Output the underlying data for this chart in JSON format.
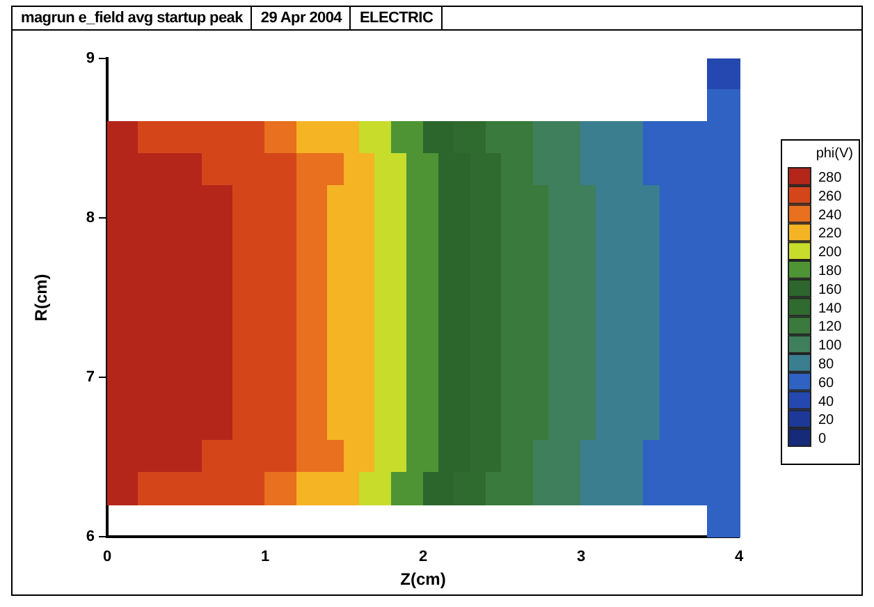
{
  "chart_data": {
    "type": "heatmap",
    "title": "magrun e_field avg startup peak",
    "subtitle": "29 Apr 2004",
    "annotations": [
      "ELECTRIC"
    ],
    "xlabel": "Z(cm)",
    "ylabel": "R(cm)",
    "clabel": "phi(V)",
    "xlim": [
      0,
      4
    ],
    "ylim": [
      6,
      9
    ],
    "xticks": [
      0,
      1,
      2,
      3,
      4
    ],
    "yticks": [
      6,
      7,
      8,
      9
    ],
    "clim": [
      0,
      300
    ],
    "cticks": [
      0,
      20,
      40,
      60,
      80,
      100,
      120,
      140,
      160,
      180,
      200,
      220,
      240,
      260,
      280
    ],
    "colors": [
      "#152a78",
      "#1d3896",
      "#2448b0",
      "#2f62c2",
      "#3a7e90",
      "#3f7f5c",
      "#3a7a3c",
      "#2f6a2e",
      "#2c662c",
      "#4e9434",
      "#c8dc2c",
      "#f4b424",
      "#e8701e",
      "#d4461a",
      "#b4261a"
    ],
    "cells": [
      [
        null,
        null,
        null,
        null,
        null,
        null,
        null,
        null,
        null,
        null,
        null,
        null,
        null,
        null,
        null,
        null,
        null,
        null,
        null,
        null,
        null,
        null,
        null,
        null,
        null,
        null,
        null,
        null,
        null,
        null,
        null,
        null,
        null,
        null,
        null,
        null,
        null,
        null,
        50,
        50
      ],
      [
        null,
        null,
        null,
        null,
        null,
        null,
        null,
        null,
        null,
        null,
        null,
        null,
        null,
        null,
        null,
        null,
        null,
        null,
        null,
        null,
        null,
        null,
        null,
        null,
        null,
        null,
        null,
        null,
        null,
        null,
        null,
        null,
        null,
        null,
        null,
        null,
        null,
        null,
        70,
        70
      ],
      [
        290,
        290,
        270,
        270,
        270,
        270,
        270,
        270,
        270,
        270,
        250,
        250,
        230,
        230,
        230,
        230,
        210,
        210,
        190,
        190,
        170,
        170,
        150,
        150,
        130,
        130,
        130,
        110,
        110,
        110,
        90,
        90,
        90,
        90,
        70,
        70,
        70,
        70,
        70,
        70
      ],
      [
        290,
        290,
        290,
        290,
        290,
        290,
        270,
        270,
        270,
        270,
        270,
        270,
        250,
        250,
        250,
        230,
        230,
        210,
        210,
        190,
        190,
        170,
        170,
        150,
        150,
        130,
        130,
        110,
        110,
        110,
        90,
        90,
        90,
        90,
        70,
        70,
        70,
        70,
        70,
        70
      ],
      [
        290,
        290,
        290,
        290,
        290,
        290,
        290,
        290,
        270,
        270,
        270,
        270,
        250,
        250,
        230,
        230,
        230,
        210,
        210,
        190,
        190,
        170,
        170,
        150,
        150,
        130,
        130,
        130,
        110,
        110,
        110,
        90,
        90,
        90,
        90,
        70,
        70,
        70,
        70,
        70
      ],
      [
        290,
        290,
        290,
        290,
        290,
        290,
        290,
        290,
        270,
        270,
        270,
        270,
        250,
        250,
        230,
        230,
        230,
        210,
        210,
        190,
        190,
        170,
        170,
        150,
        150,
        130,
        130,
        130,
        110,
        110,
        110,
        90,
        90,
        90,
        90,
        70,
        70,
        70,
        70,
        70
      ],
      [
        290,
        290,
        290,
        290,
        290,
        290,
        290,
        290,
        270,
        270,
        270,
        270,
        250,
        250,
        230,
        230,
        230,
        210,
        210,
        190,
        190,
        170,
        170,
        150,
        150,
        130,
        130,
        130,
        110,
        110,
        110,
        90,
        90,
        90,
        90,
        70,
        70,
        70,
        70,
        70
      ],
      [
        290,
        290,
        290,
        290,
        290,
        290,
        290,
        290,
        270,
        270,
        270,
        270,
        250,
        250,
        230,
        230,
        230,
        210,
        210,
        190,
        190,
        170,
        170,
        150,
        150,
        130,
        130,
        130,
        110,
        110,
        110,
        90,
        90,
        90,
        90,
        70,
        70,
        70,
        70,
        70
      ],
      [
        290,
        290,
        290,
        290,
        290,
        290,
        290,
        290,
        270,
        270,
        270,
        270,
        250,
        250,
        230,
        230,
        230,
        210,
        210,
        190,
        190,
        170,
        170,
        150,
        150,
        130,
        130,
        130,
        110,
        110,
        110,
        90,
        90,
        90,
        90,
        70,
        70,
        70,
        70,
        70
      ],
      [
        290,
        290,
        290,
        290,
        290,
        290,
        290,
        290,
        270,
        270,
        270,
        270,
        250,
        250,
        230,
        230,
        230,
        210,
        210,
        190,
        190,
        170,
        170,
        150,
        150,
        130,
        130,
        130,
        110,
        110,
        110,
        90,
        90,
        90,
        90,
        70,
        70,
        70,
        70,
        70
      ],
      [
        290,
        290,
        290,
        290,
        290,
        290,
        290,
        290,
        270,
        270,
        270,
        270,
        250,
        250,
        230,
        230,
        230,
        210,
        210,
        190,
        190,
        170,
        170,
        150,
        150,
        130,
        130,
        130,
        110,
        110,
        110,
        90,
        90,
        90,
        90,
        70,
        70,
        70,
        70,
        70
      ],
      [
        290,
        290,
        290,
        290,
        290,
        290,
        290,
        290,
        270,
        270,
        270,
        270,
        250,
        250,
        230,
        230,
        230,
        210,
        210,
        190,
        190,
        170,
        170,
        150,
        150,
        130,
        130,
        130,
        110,
        110,
        110,
        90,
        90,
        90,
        90,
        70,
        70,
        70,
        70,
        70
      ],
      [
        290,
        290,
        290,
        290,
        290,
        290,
        270,
        270,
        270,
        270,
        270,
        270,
        250,
        250,
        250,
        230,
        230,
        210,
        210,
        190,
        190,
        170,
        170,
        150,
        150,
        130,
        130,
        110,
        110,
        110,
        90,
        90,
        90,
        90,
        70,
        70,
        70,
        70,
        70,
        70
      ],
      [
        290,
        290,
        270,
        270,
        270,
        270,
        270,
        270,
        270,
        270,
        250,
        250,
        230,
        230,
        230,
        230,
        210,
        210,
        190,
        190,
        170,
        170,
        150,
        150,
        130,
        130,
        130,
        110,
        110,
        110,
        90,
        90,
        90,
        90,
        70,
        70,
        70,
        70,
        70,
        70
      ],
      [
        null,
        null,
        null,
        null,
        null,
        null,
        null,
        null,
        null,
        null,
        null,
        null,
        null,
        null,
        null,
        null,
        null,
        null,
        null,
        null,
        null,
        null,
        null,
        null,
        null,
        null,
        null,
        null,
        null,
        null,
        null,
        null,
        null,
        null,
        null,
        null,
        null,
        null,
        70,
        70
      ]
    ]
  }
}
